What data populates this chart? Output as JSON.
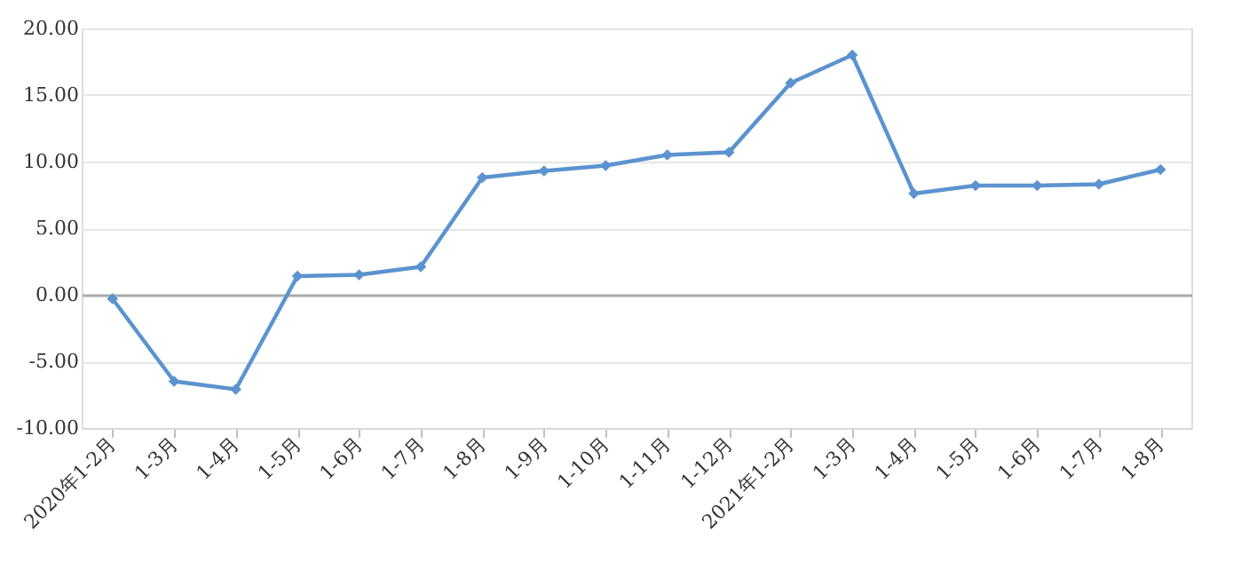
{
  "chart_data": {
    "type": "line",
    "categories": [
      "2020年1-2月",
      "1-3月",
      "1-4月",
      "1-5月",
      "1-6月",
      "1-7月",
      "1-8月",
      "1-9月",
      "1-10月",
      "1-11月",
      "1-12月",
      "2021年1-2月",
      "1-3月",
      "1-4月",
      "1-5月",
      "1-6月",
      "1-7月",
      "1-8月"
    ],
    "series": [
      {
        "color": "#5b93cf",
        "values": [
          -0.3,
          -6.5,
          -7.1,
          1.4,
          1.5,
          2.1,
          8.8,
          9.3,
          9.7,
          10.5,
          10.7,
          15.9,
          18.0,
          7.6,
          8.2,
          8.2,
          8.3,
          9.4
        ]
      }
    ],
    "ylim": [
      -10,
      20
    ],
    "yticks": [
      {
        "value": -10,
        "label": "-10.00"
      },
      {
        "value": -5,
        "label": "-5.00"
      },
      {
        "value": 0,
        "label": "0.00"
      },
      {
        "value": 5,
        "label": "5.00"
      },
      {
        "value": 10,
        "label": "10.00"
      },
      {
        "value": 15,
        "label": "15.00"
      },
      {
        "value": 20,
        "label": "20.00"
      }
    ],
    "grid": "y",
    "marker": "diamond",
    "line_style": "solid"
  }
}
